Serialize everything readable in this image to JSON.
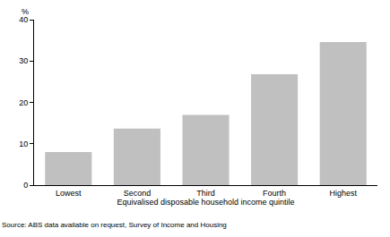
{
  "chart_data": {
    "type": "bar",
    "y_label": "%",
    "x_label": "Equivalised disposable household income quintile",
    "categories": [
      "Lowest",
      "Second",
      "Third",
      "Fourth",
      "Highest"
    ],
    "values": [
      8,
      13.7,
      17,
      26.8,
      34.6
    ],
    "color": "#c0c0c0",
    "ylim": [
      0,
      40
    ],
    "yticks": [
      0,
      10,
      20,
      30,
      40
    ],
    "grid": true,
    "annotations": [
      "Source: ABS data available on request, Survey of Income and Housing"
    ]
  }
}
